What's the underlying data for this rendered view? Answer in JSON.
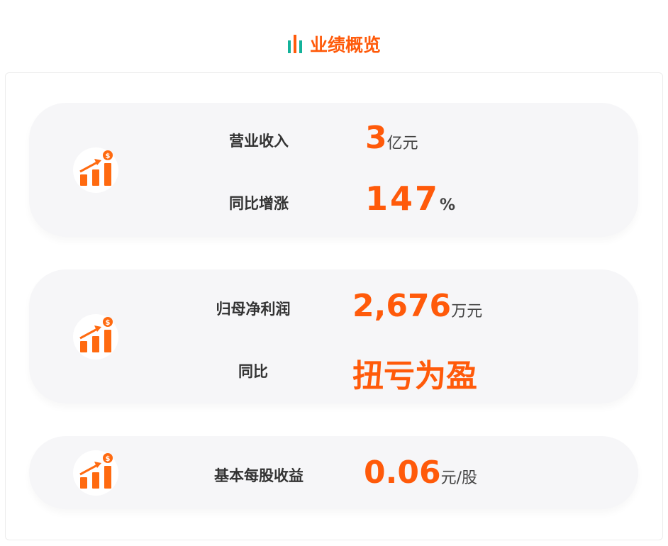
{
  "header": {
    "title": "业绩概览",
    "icon": "bar-chart-icon"
  },
  "colors": {
    "accent": "#ff5a0a",
    "icon_teal": "#13b29a",
    "card_bg": "#f6f6f8"
  },
  "cards": [
    {
      "rows": [
        {
          "label": "营业收入",
          "value": "3",
          "unit": "亿元"
        },
        {
          "label": "同比增涨",
          "value": "147",
          "unit": "%"
        }
      ]
    },
    {
      "rows": [
        {
          "label": "归母净利润",
          "value": "2,676",
          "unit": "万元"
        },
        {
          "label": "同比",
          "value": "扭亏为盈",
          "unit": ""
        }
      ]
    },
    {
      "rows": [
        {
          "label": "基本每股收益",
          "value": "0.06",
          "unit": "元/股"
        }
      ]
    }
  ]
}
